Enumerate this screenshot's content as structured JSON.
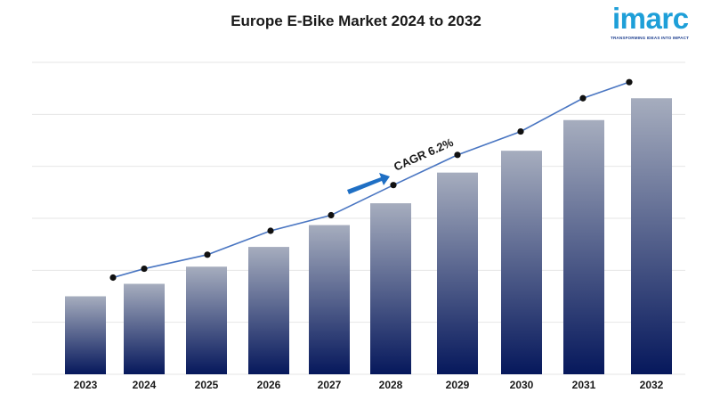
{
  "logo": {
    "word": "imarc",
    "tagline": "TRANSFORMING IDEAS INTO IMPACT"
  },
  "chart_data": {
    "type": "bar",
    "title": "Europe E-Bike Market 2024 to 2032",
    "xlabel": "",
    "ylabel": "",
    "categories": [
      "2023",
      "2024",
      "2025",
      "2026",
      "2027",
      "2028",
      "2029",
      "2030",
      "2031",
      "2032"
    ],
    "values": [
      1.5,
      1.74,
      2.07,
      2.45,
      2.87,
      3.29,
      3.88,
      4.3,
      4.89,
      5.31
    ],
    "trend_values": [
      1.86,
      2.03,
      2.3,
      2.76,
      3.06,
      3.64,
      4.22,
      4.67,
      5.31,
      5.62
    ],
    "ylim": [
      0,
      6
    ],
    "grid": true,
    "annotation": "CAGR 6.2%",
    "colors": {
      "bar_top": "#a6adbe",
      "bar_bottom": "#06185c",
      "trend_line": "#4a76c2",
      "trend_point": "#111111",
      "arrow": "#1f6fc4",
      "grid": "#e6e6e6"
    }
  }
}
